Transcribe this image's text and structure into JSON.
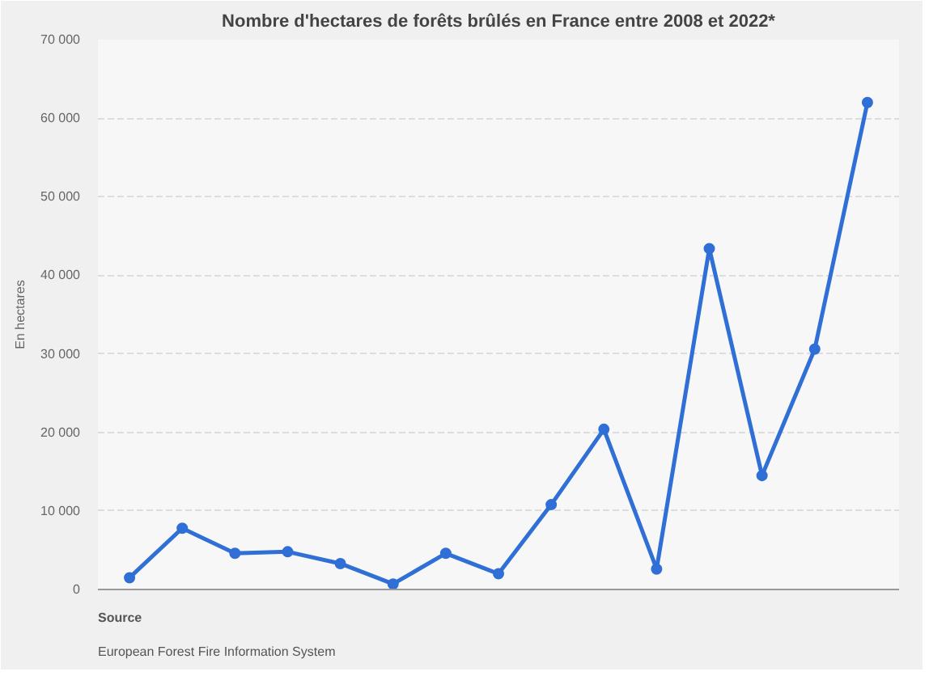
{
  "chart_data": {
    "type": "line",
    "title": "Nombre d'hectares de forêts brûlés en France entre 2008 et 2022*",
    "ylabel": "En hectares",
    "categories": [
      null,
      null,
      null,
      null,
      null,
      null,
      null,
      null,
      null,
      null,
      null,
      null,
      null,
      null,
      null
    ],
    "series": [
      {
        "color": "#2f6fd6",
        "values": [
          1500,
          7800,
          4600,
          4800,
          3300,
          700,
          4600,
          2000,
          10800,
          20400,
          2600,
          43400,
          14500,
          30600,
          62000
        ]
      }
    ],
    "ylim": [
      0,
      70000
    ],
    "yticks": [
      {
        "value": 0,
        "label": "0"
      },
      {
        "value": 10000,
        "label": "10 000"
      },
      {
        "value": 20000,
        "label": "20 000"
      },
      {
        "value": 30000,
        "label": "30 000"
      },
      {
        "value": 40000,
        "label": "40 000"
      },
      {
        "value": 50000,
        "label": "50 000"
      },
      {
        "value": 60000,
        "label": "60 000"
      },
      {
        "value": 70000,
        "label": "70 000"
      }
    ],
    "grid": "y",
    "marker": "circle",
    "tick_labels": "y",
    "annotations": [
      "Source",
      "European Forest Fire Information System"
    ]
  }
}
